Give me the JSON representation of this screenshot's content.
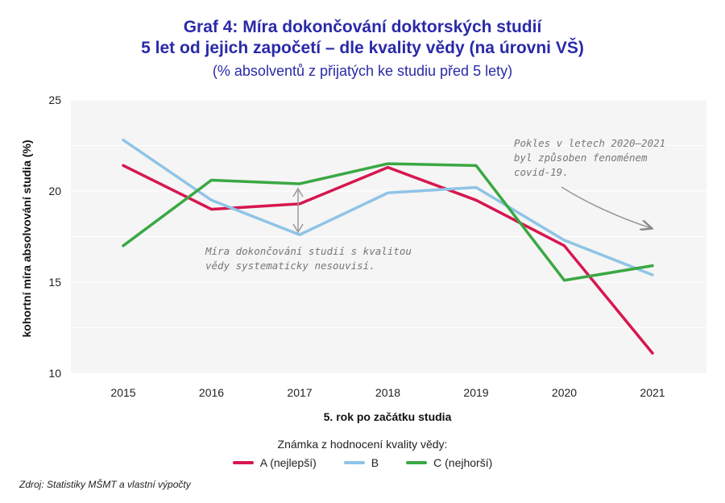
{
  "header": {
    "title_line1": "Graf 4: Míra dokončování doktorských studií",
    "title_line2": "5 let od jejich započetí – dle kvality vědy (na úrovni VŠ)",
    "subtitle": "(% absolventů z přijatých ke studiu před 5 lety)"
  },
  "chart_data": {
    "type": "line",
    "title": "Graf 4: Míra dokončování doktorských studií 5 let od jejich započetí – dle kvality vědy (na úrovni VŠ)",
    "xlabel": "5. rok po začátku studia",
    "ylabel": "kohortní míra absolvování studia (%)",
    "ylim": [
      10,
      25
    ],
    "yticks": [
      "10",
      "15",
      "20",
      "25"
    ],
    "categories": [
      "2015",
      "2016",
      "2017",
      "2018",
      "2019",
      "2020",
      "2021"
    ],
    "series": [
      {
        "name": "A (nejlepší)",
        "color": "#d6174f",
        "values": [
          21.4,
          19.0,
          19.3,
          21.3,
          19.5,
          17.0,
          11.1
        ]
      },
      {
        "name": "B",
        "color": "#8fc4e6",
        "values": [
          22.8,
          19.5,
          17.6,
          19.9,
          20.2,
          17.3,
          15.4
        ]
      },
      {
        "name": "C (nejhorší)",
        "color": "#3aa843",
        "values": [
          17.0,
          20.6,
          20.4,
          21.5,
          21.4,
          15.1,
          15.9
        ]
      }
    ],
    "annotations": [
      {
        "line1": "Míra dokončování studií s kvalitou",
        "line2": "vědy systematicky nesouvisí."
      },
      {
        "line1": "Pokles v letech 2020–2021",
        "line2": "byl způsoben fenoménem",
        "line3": "covid-19."
      }
    ]
  },
  "legend": {
    "title": "Známka z hodnocení kvality vědy:"
  },
  "footer": {
    "source": "Zdroj: Statistiky MŠMT a vlastní výpočty"
  }
}
